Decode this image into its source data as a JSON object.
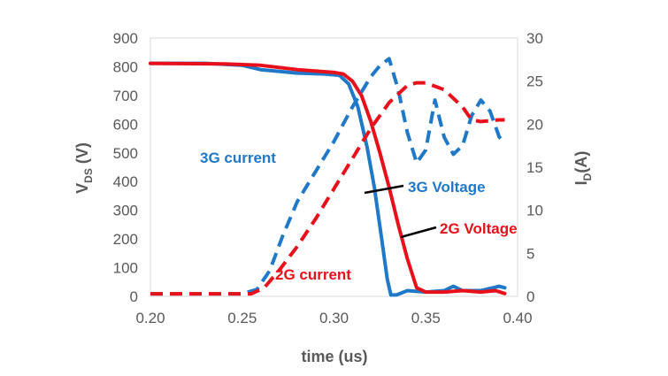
{
  "chart_data": {
    "type": "line",
    "title": "",
    "xlabel": "time (us)",
    "ylabel_left": {
      "main": "V",
      "sub": "DS",
      "unit": " (V)"
    },
    "ylabel_right": {
      "main": "I",
      "sub": "D",
      "unit": "(A)"
    },
    "xlim": [
      0.2,
      0.4
    ],
    "ylim_left": [
      0,
      900
    ],
    "ylim_right": [
      0,
      30
    ],
    "x_ticks": [
      "0.20",
      "0.25",
      "0.30",
      "0.35",
      "0.40"
    ],
    "y_left_ticks": [
      "0",
      "100",
      "200",
      "300",
      "400",
      "500",
      "600",
      "700",
      "800",
      "900"
    ],
    "y_right_ticks": [
      "0",
      "5",
      "10",
      "15",
      "20",
      "25",
      "30"
    ],
    "grid": false,
    "series": [
      {
        "name": "3G Voltage",
        "axis": "left",
        "color": "#1f78c8",
        "dash": "solid",
        "x": [
          0.2,
          0.23,
          0.25,
          0.26,
          0.28,
          0.295,
          0.303,
          0.308,
          0.313,
          0.318,
          0.322,
          0.326,
          0.329,
          0.331,
          0.334,
          0.34,
          0.35,
          0.36,
          0.365,
          0.37,
          0.38,
          0.39,
          0.393
        ],
        "y": [
          812,
          812,
          805,
          790,
          778,
          775,
          770,
          740,
          660,
          520,
          380,
          200,
          60,
          5,
          5,
          20,
          15,
          20,
          35,
          20,
          20,
          35,
          30
        ]
      },
      {
        "name": "2G Voltage",
        "axis": "left",
        "color": "#e8101a",
        "dash": "solid",
        "x": [
          0.2,
          0.24,
          0.26,
          0.28,
          0.3,
          0.305,
          0.31,
          0.315,
          0.32,
          0.325,
          0.33,
          0.335,
          0.34,
          0.345,
          0.35,
          0.36,
          0.37,
          0.38,
          0.388,
          0.393
        ],
        "y": [
          812,
          810,
          805,
          790,
          780,
          775,
          750,
          700,
          610,
          500,
          380,
          250,
          130,
          30,
          15,
          15,
          20,
          15,
          20,
          10
        ]
      },
      {
        "name": "3G current",
        "axis": "right",
        "color": "#1f78c8",
        "dash": "dashed",
        "x": [
          0.2,
          0.25,
          0.258,
          0.265,
          0.272,
          0.28,
          0.29,
          0.3,
          0.31,
          0.32,
          0.325,
          0.33,
          0.335,
          0.34,
          0.345,
          0.35,
          0.355,
          0.36,
          0.365,
          0.37,
          0.375,
          0.38,
          0.385,
          0.39,
          0.393
        ],
        "y": [
          0.3,
          0.3,
          0.8,
          3.0,
          7.0,
          11.0,
          14.5,
          18.0,
          22.0,
          25.5,
          26.8,
          27.6,
          24.0,
          19.0,
          15.5,
          17.0,
          22.8,
          18.5,
          16.5,
          17.5,
          21.0,
          22.8,
          21.5,
          18.5,
          17.8
        ]
      },
      {
        "name": "2G current",
        "axis": "right",
        "color": "#e8101a",
        "dash": "dashed",
        "x": [
          0.2,
          0.255,
          0.262,
          0.27,
          0.28,
          0.29,
          0.3,
          0.31,
          0.32,
          0.33,
          0.34,
          0.345,
          0.35,
          0.36,
          0.365,
          0.37,
          0.375,
          0.38,
          0.39,
          0.393
        ],
        "y": [
          0.3,
          0.3,
          1.0,
          3.0,
          5.8,
          9.0,
          12.5,
          16.0,
          19.5,
          22.5,
          24.5,
          24.8,
          24.8,
          24.0,
          23.0,
          22.0,
          20.5,
          20.3,
          20.5,
          20.5
        ]
      }
    ],
    "annotations": [
      {
        "id": "ann-3g-current",
        "text": "3G current",
        "color": "#1f78c8"
      },
      {
        "id": "ann-3g-voltage",
        "text": "3G Voltage",
        "color": "#1f78c8"
      },
      {
        "id": "ann-2g-voltage",
        "text": "2G Voltage",
        "color": "#e8101a"
      },
      {
        "id": "ann-2g-current",
        "text": "2G current",
        "color": "#e8101a"
      }
    ]
  }
}
